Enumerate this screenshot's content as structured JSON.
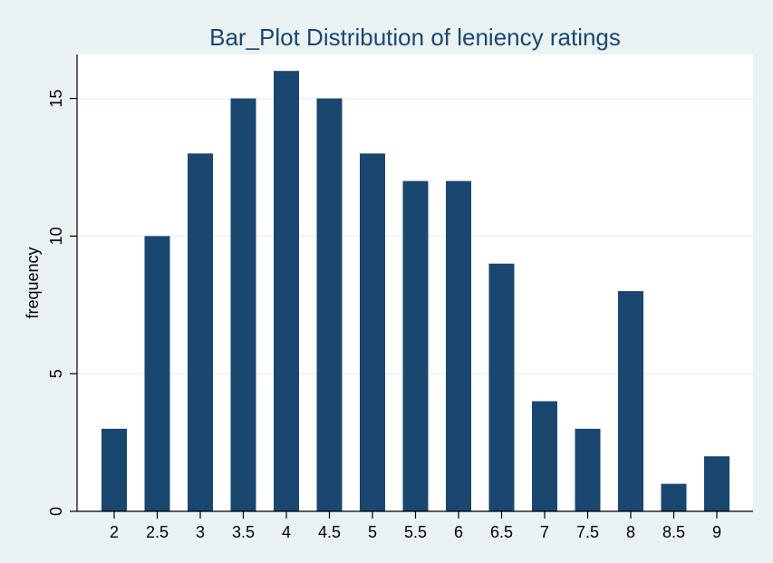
{
  "chart_data": {
    "type": "bar",
    "title": "Bar_Plot Distribution of leniency ratings",
    "xlabel": "",
    "ylabel": "frequency",
    "categories": [
      "2",
      "2.5",
      "3",
      "3.5",
      "4",
      "4.5",
      "5",
      "5.5",
      "6",
      "6.5",
      "7",
      "7.5",
      "8",
      "8.5",
      "9"
    ],
    "values": [
      3,
      10,
      13,
      15,
      16,
      15,
      13,
      12,
      12,
      9,
      4,
      3,
      8,
      1,
      2
    ],
    "ylim": [
      0,
      16.6
    ],
    "yticks": [
      0,
      5,
      10,
      15
    ],
    "ytick_labels": [
      "0",
      "5",
      "10",
      "15"
    ],
    "grid": true,
    "legend": "none",
    "colors": {
      "bar": "#1a476f",
      "plot_background": "#ffffff",
      "outer_background": "#eaf2f3",
      "gridline": "#eaf2f3",
      "title": "#1a476f",
      "axis": "#000000"
    }
  }
}
